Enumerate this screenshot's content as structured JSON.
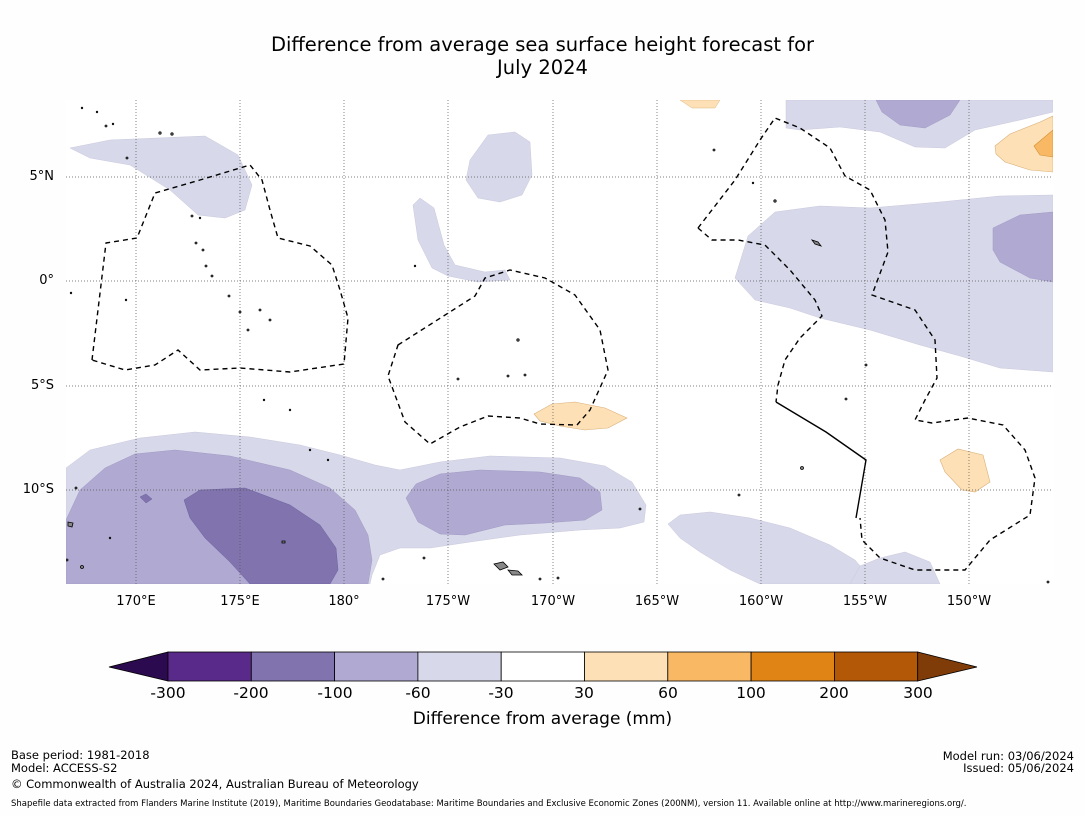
{
  "title": {
    "line1": "Difference from average sea surface height forecast for",
    "line2": "July 2024"
  },
  "axes": {
    "lat_labels": [
      "5°N",
      "0°",
      "5°S",
      "10°S"
    ],
    "lon_labels": [
      "170°E",
      "175°E",
      "180°",
      "175°W",
      "170°W",
      "165°W",
      "160°W",
      "155°W",
      "150°W"
    ]
  },
  "legend": {
    "ticks": [
      "-300",
      "-200",
      "-100",
      "-60",
      "-30",
      "30",
      "60",
      "100",
      "200",
      "300"
    ],
    "colors": [
      "#2c0a4f",
      "#5a2a8a",
      "#8073ae",
      "#b0a9d1",
      "#d7d8e9",
      "#ffffff",
      "#fde0b5",
      "#f9b964",
      "#e08416",
      "#b35806",
      "#7f3b08"
    ],
    "label": "Difference from average (mm)"
  },
  "footer": {
    "base_period": "Base period: 1981-2018",
    "model": "Model: ACCESS-S2",
    "copyright": "© Commonwealth of Australia 2024, Australian Bureau of Meteorology",
    "model_run": "Model run: 03/06/2024",
    "issued": "Issued: 05/06/2024",
    "shapefile": "Shapefile data extracted from Flanders Marine Institute (2019), Maritime Boundaries Geodatabase: Maritime Boundaries and Exclusive Economic Zones (200NM), version 11. Available online at http://www.marineregions.org/."
  }
}
